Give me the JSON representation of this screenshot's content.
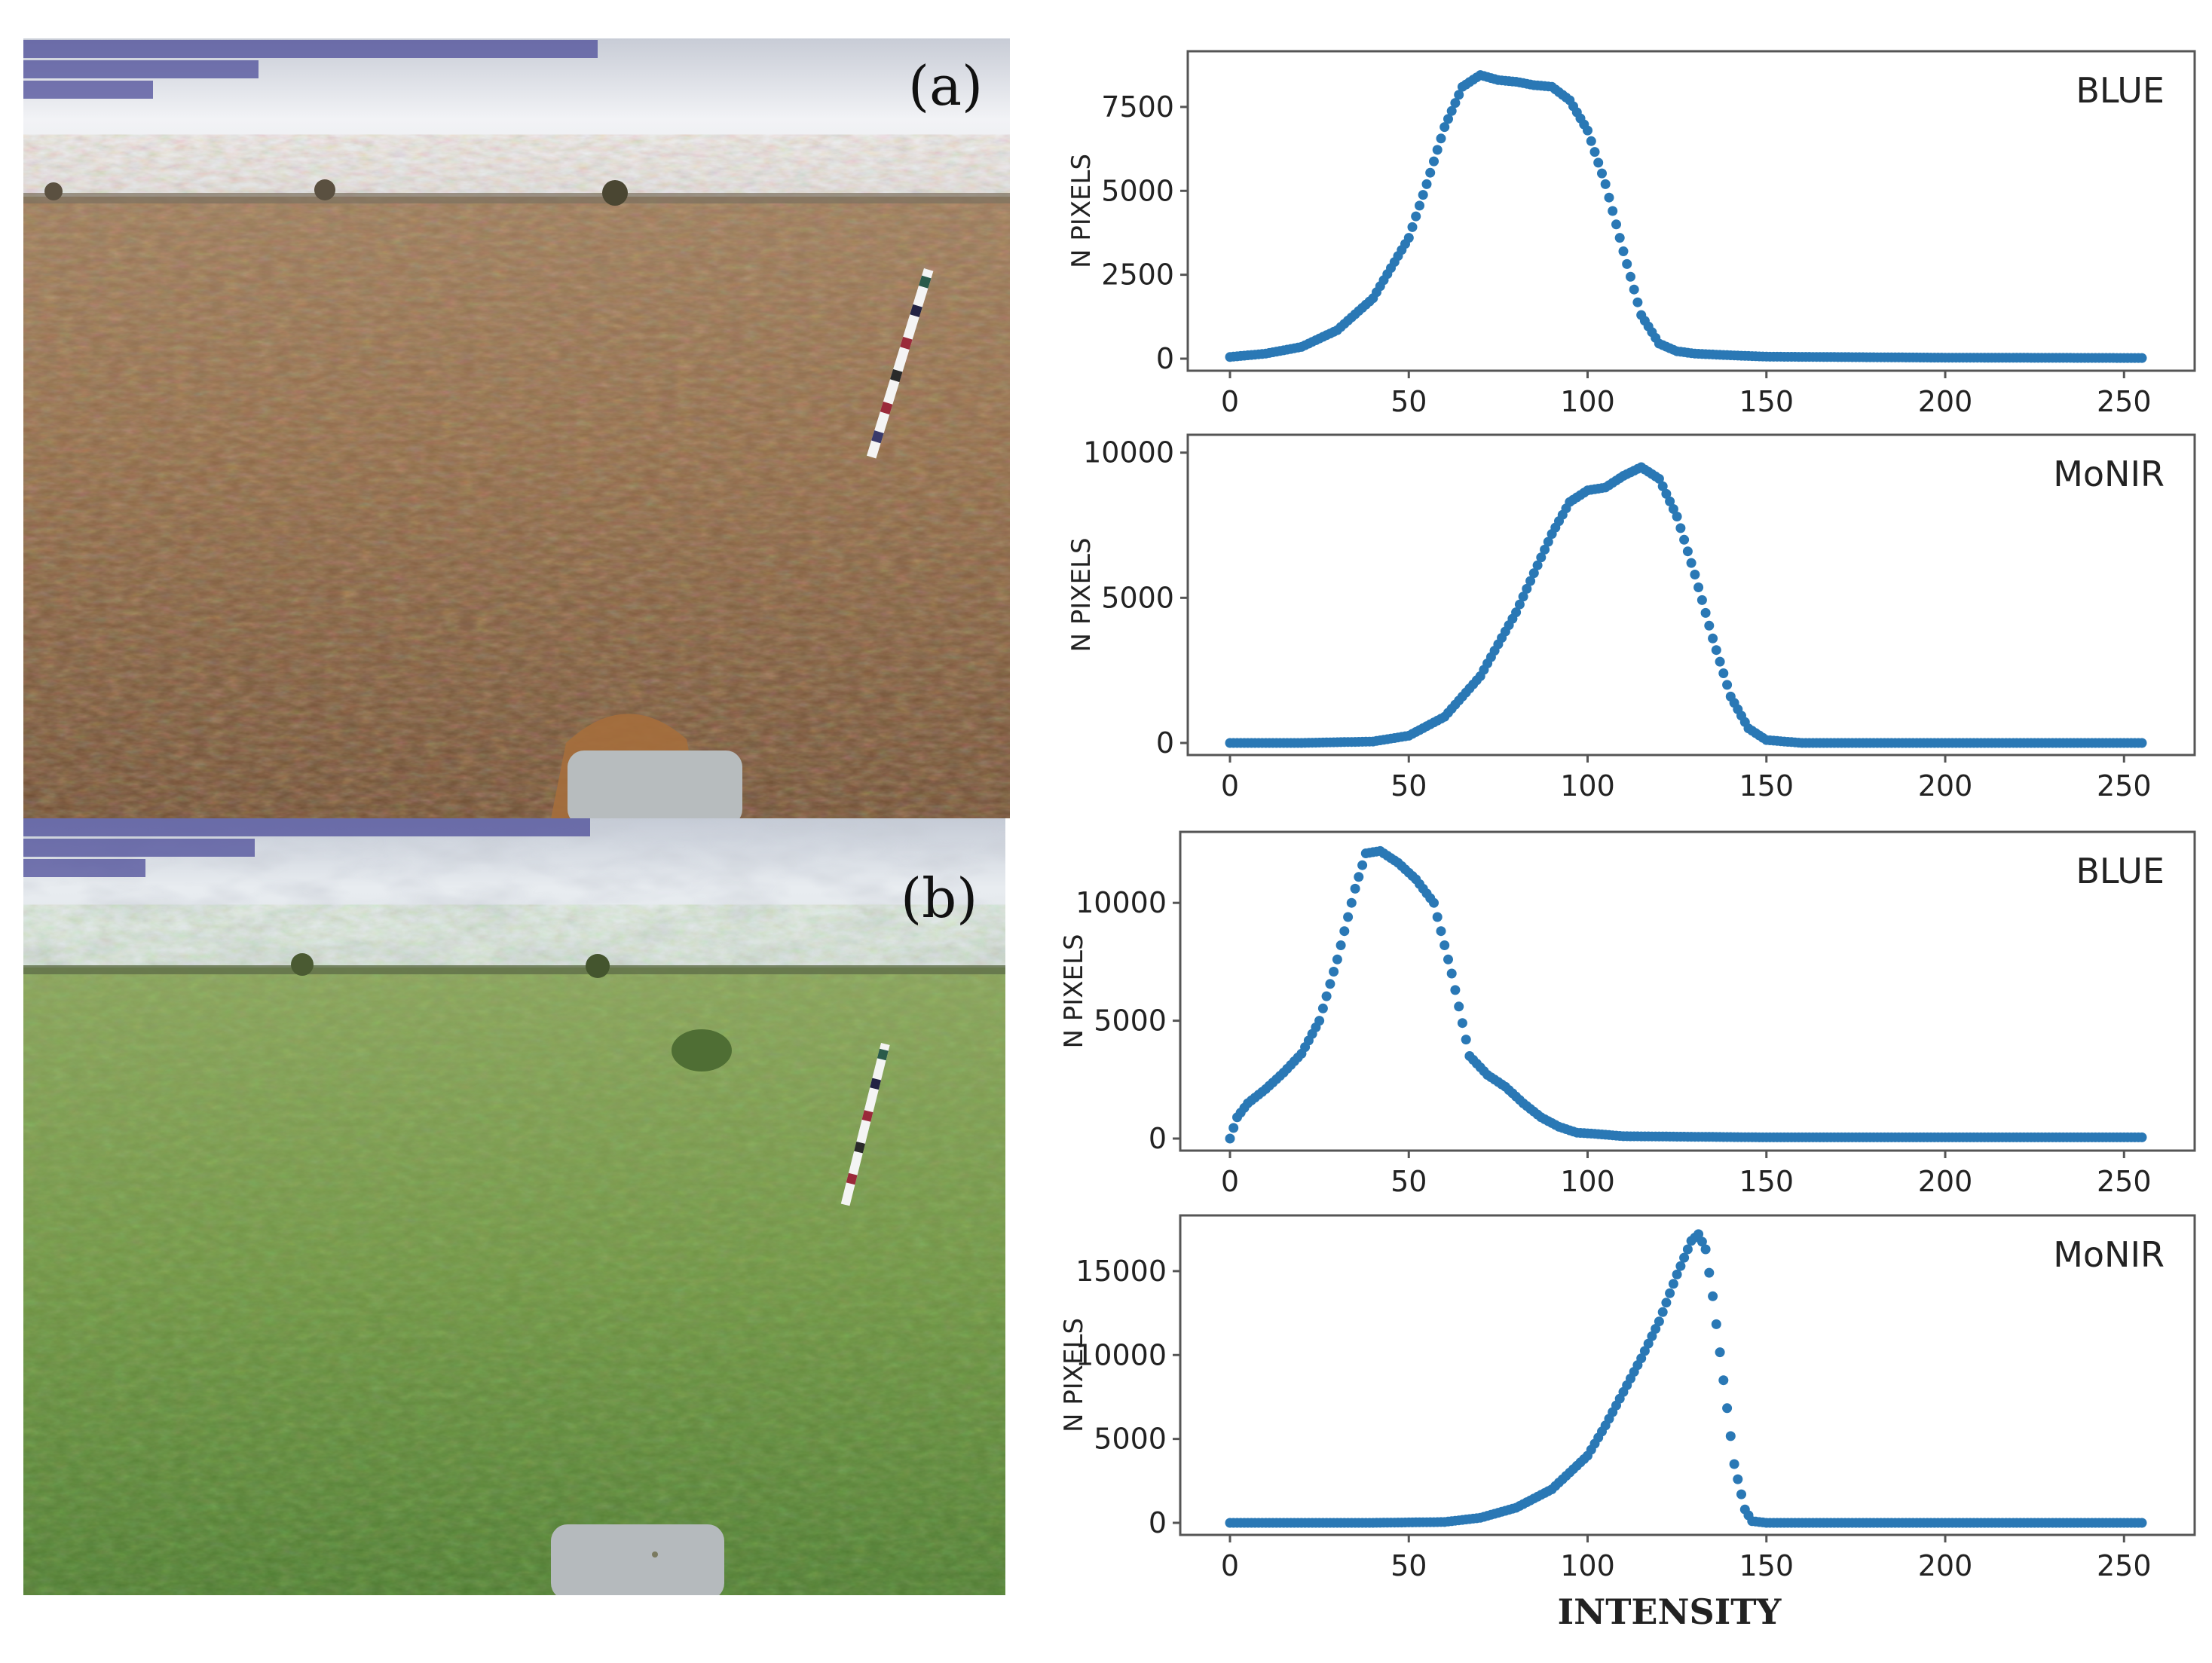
{
  "figure": {
    "panel_a_label": "(a)",
    "panel_b_label": "(b)",
    "x_title": "INTENSITY"
  },
  "colors": {
    "series": "#2a78b5",
    "frame": "#555555",
    "text": "#222222"
  },
  "chart_data": [
    {
      "type": "scatter",
      "panel": "a",
      "label": "BLUE",
      "ylabel": "N PIXELS",
      "xlim": [
        0,
        255
      ],
      "ylim": [
        0,
        8800
      ],
      "xticks": [
        0,
        50,
        100,
        150,
        200,
        250
      ],
      "yticks": [
        0,
        2500,
        5000,
        7500
      ],
      "anchors_x": [
        0,
        10,
        20,
        30,
        40,
        50,
        55,
        60,
        65,
        70,
        75,
        80,
        85,
        90,
        95,
        100,
        105,
        110,
        115,
        120,
        125,
        130,
        140,
        150,
        200,
        255
      ],
      "anchors_y": [
        50,
        150,
        350,
        850,
        1800,
        3600,
        5200,
        6900,
        8100,
        8450,
        8300,
        8250,
        8150,
        8100,
        7700,
        6800,
        5200,
        3200,
        1300,
        450,
        220,
        150,
        100,
        60,
        30,
        20
      ]
    },
    {
      "type": "scatter",
      "panel": "a",
      "label": "MoNIR",
      "ylabel": "N PIXELS",
      "xlim": [
        0,
        255
      ],
      "ylim": [
        0,
        10200
      ],
      "xticks": [
        0,
        50,
        100,
        150,
        200,
        250
      ],
      "yticks": [
        0,
        5000,
        10000
      ],
      "anchors_x": [
        0,
        20,
        40,
        50,
        60,
        70,
        80,
        90,
        95,
        100,
        105,
        110,
        115,
        120,
        125,
        130,
        135,
        140,
        145,
        150,
        160,
        200,
        255
      ],
      "anchors_y": [
        0,
        0,
        50,
        250,
        900,
        2300,
        4500,
        7200,
        8300,
        8700,
        8800,
        9200,
        9500,
        9100,
        7800,
        5800,
        3600,
        1600,
        500,
        100,
        0,
        0,
        0
      ]
    },
    {
      "type": "scatter",
      "panel": "b",
      "label": "BLUE",
      "ylabel": "N PIXELS",
      "xlim": [
        0,
        255
      ],
      "ylim": [
        0,
        12500
      ],
      "xticks": [
        0,
        50,
        100,
        150,
        200,
        250
      ],
      "yticks": [
        0,
        5000,
        10000
      ],
      "anchors_x": [
        0,
        2,
        5,
        10,
        15,
        20,
        25,
        30,
        35,
        38,
        42,
        47,
        52,
        57,
        62,
        67,
        72,
        77,
        82,
        87,
        92,
        97,
        102,
        110,
        150,
        255
      ],
      "anchors_y": [
        0,
        900,
        1500,
        2100,
        2800,
        3600,
        5000,
        7600,
        10600,
        12100,
        12200,
        11700,
        11000,
        10000,
        7000,
        3500,
        2700,
        2200,
        1500,
        900,
        500,
        250,
        200,
        100,
        50,
        50
      ]
    },
    {
      "type": "scatter",
      "panel": "b",
      "label": "MoNIR",
      "ylabel": "N PIXELS",
      "xlim": [
        0,
        255
      ],
      "ylim": [
        0,
        17600
      ],
      "xticks": [
        0,
        50,
        100,
        150,
        200,
        250
      ],
      "yticks": [
        0,
        5000,
        10000,
        15000
      ],
      "anchors_x": [
        0,
        40,
        60,
        70,
        80,
        90,
        100,
        105,
        110,
        115,
        120,
        125,
        129,
        131,
        133,
        135,
        138,
        141,
        144,
        146,
        150,
        200,
        255
      ],
      "anchors_y": [
        0,
        0,
        50,
        300,
        900,
        2000,
        4000,
        5800,
        7800,
        9800,
        12000,
        14800,
        16800,
        17200,
        16300,
        13500,
        8500,
        3500,
        800,
        100,
        0,
        0,
        0
      ]
    }
  ]
}
